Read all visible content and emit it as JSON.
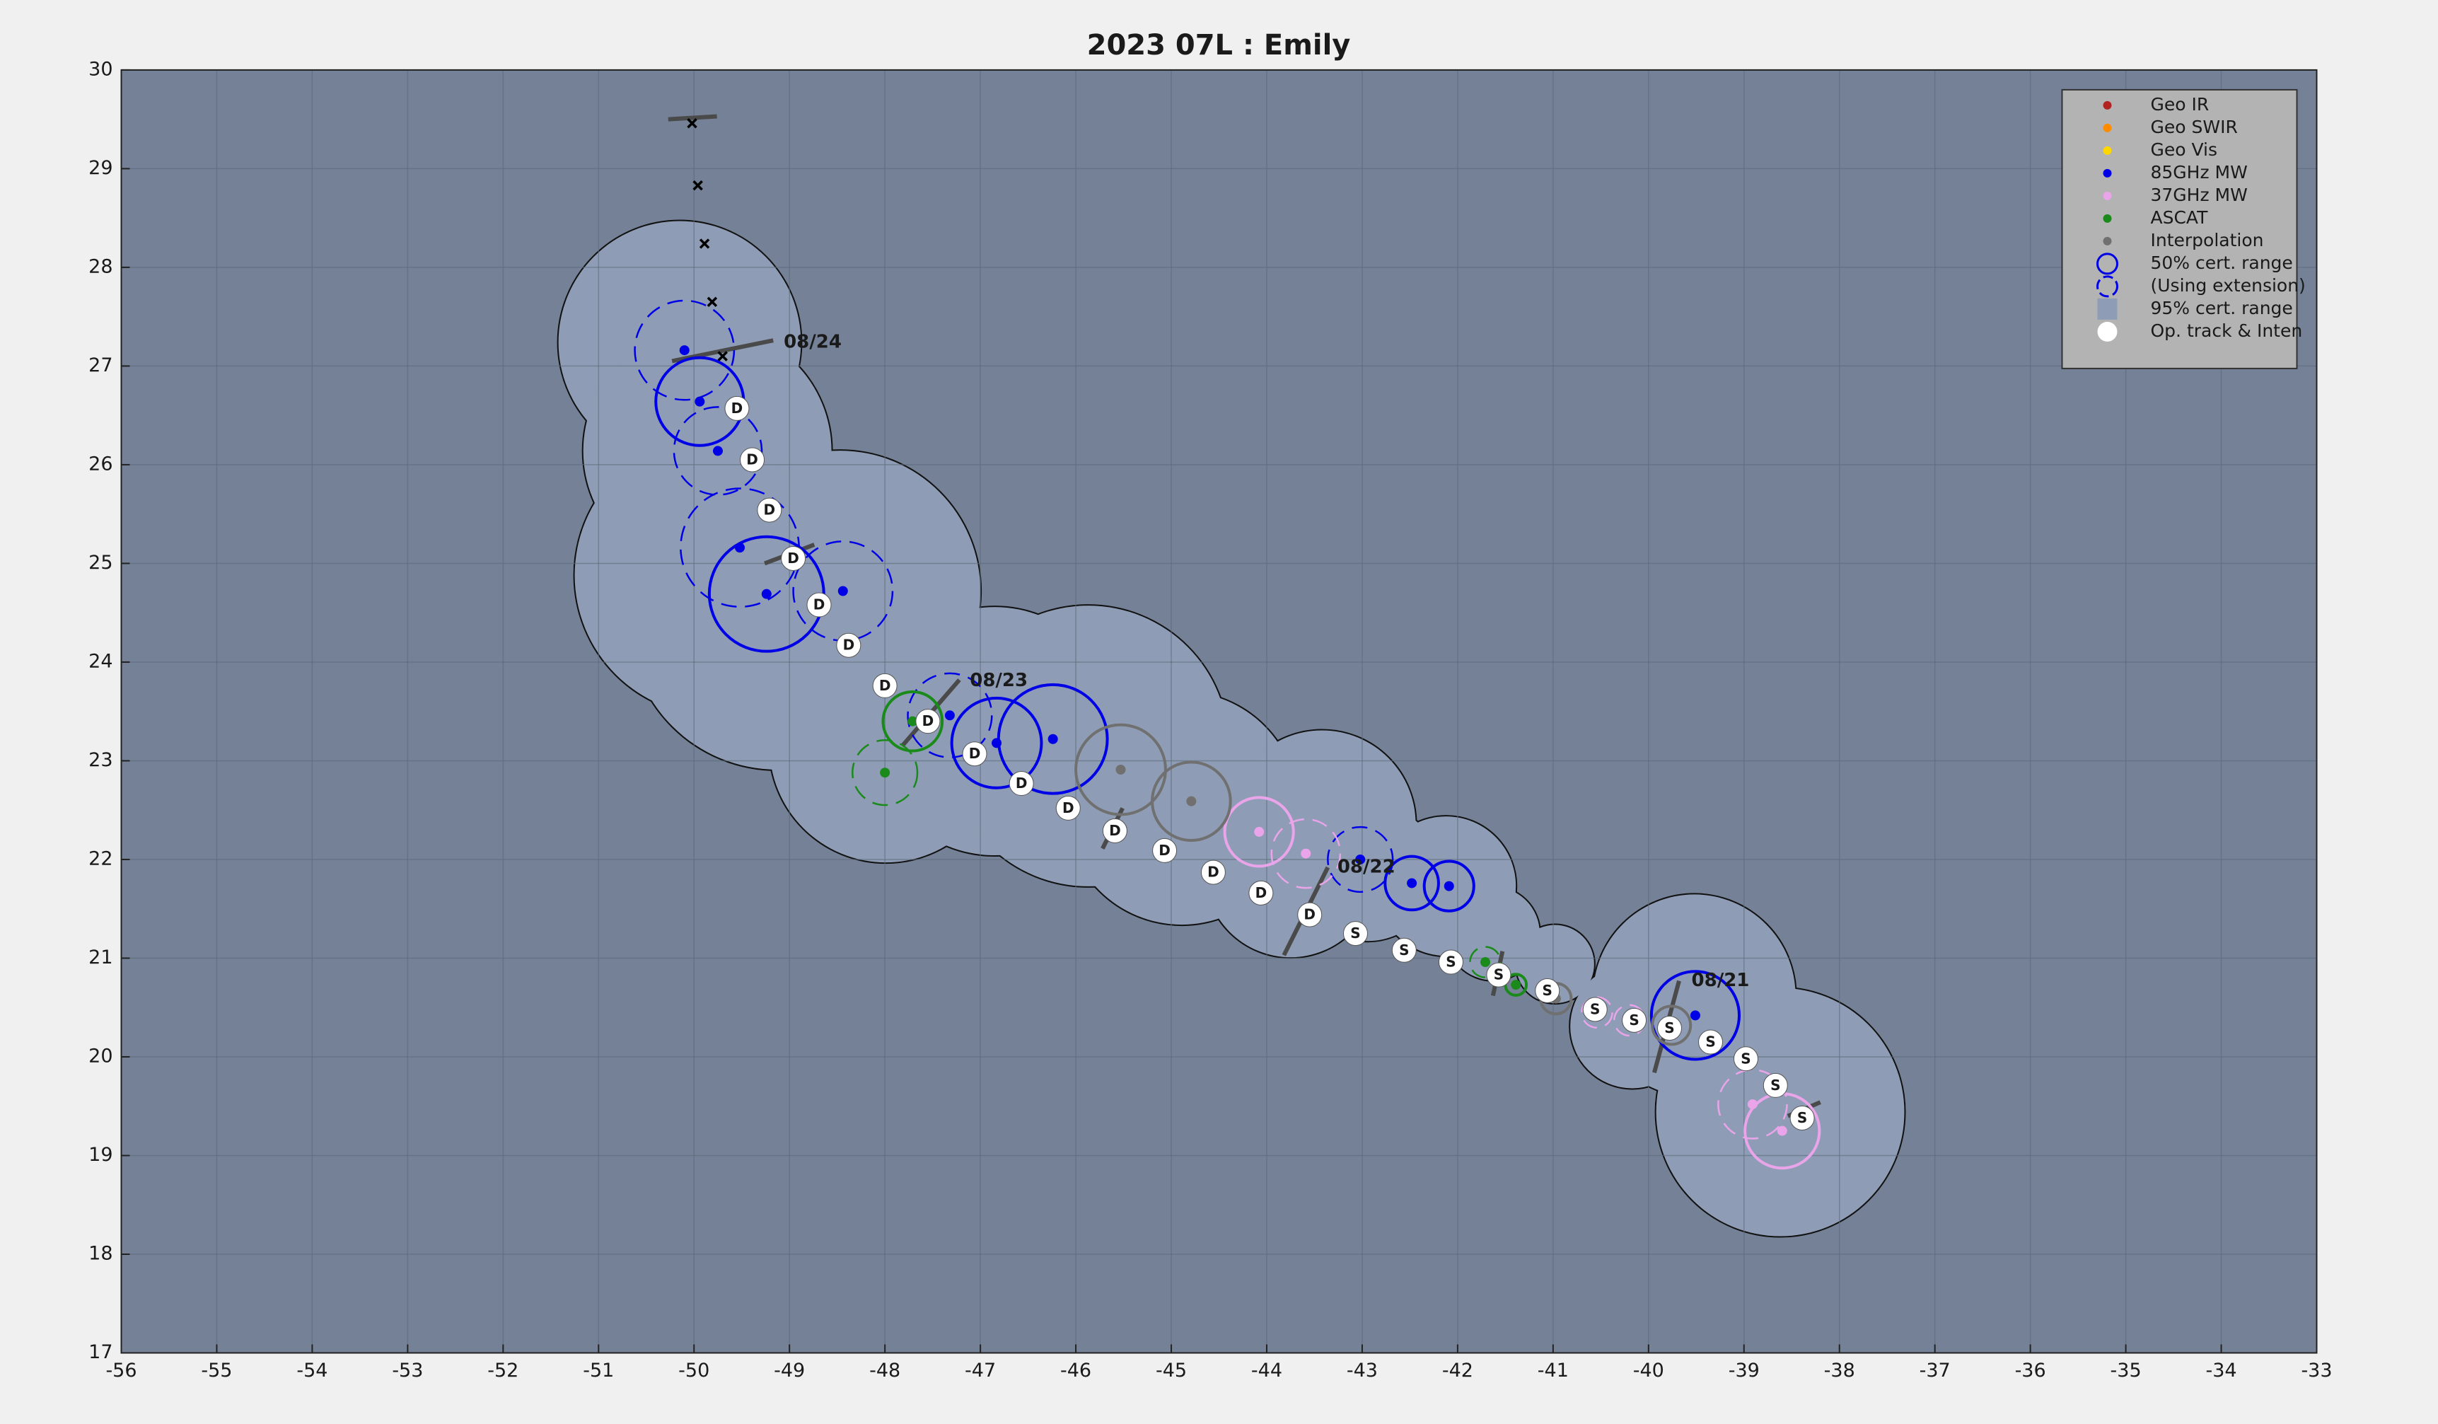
{
  "chart_data": {
    "type": "scatter",
    "title": "2023  07L :  Emily",
    "xlim": [
      -56,
      -33
    ],
    "xticks": [
      -56,
      -55,
      -54,
      -53,
      -52,
      -51,
      -50,
      -49,
      -48,
      -47,
      -46,
      -45,
      -44,
      -43,
      -42,
      -41,
      -40,
      -39,
      -38,
      -37,
      -36,
      -35,
      -34,
      -33
    ],
    "ylim": [
      17,
      30
    ],
    "yticks": [
      17,
      18,
      19,
      20,
      21,
      22,
      23,
      24,
      25,
      26,
      27,
      28,
      29,
      30
    ],
    "grid": true,
    "legend_position": "upper right",
    "series": [
      {
        "name": "Geo IR",
        "color": "#b22222",
        "x": [],
        "values": [],
        "radius": [],
        "extension": []
      },
      {
        "name": "Geo SWIR",
        "color": "#ff8c00",
        "x": [],
        "values": [],
        "radius": [],
        "extension": []
      },
      {
        "name": "Geo Vis",
        "color": "#ffd700",
        "x": [],
        "values": [],
        "radius": [],
        "extension": []
      },
      {
        "name": "85GHz MW",
        "color": "#0000e6",
        "x": [
          -49.94,
          -50.1,
          -49.75,
          -49.52,
          -49.24,
          -48.44,
          -47.32,
          -46.83,
          -46.24,
          -43.02,
          -42.48,
          -42.09,
          -39.51
        ],
        "values": [
          26.64,
          27.16,
          26.14,
          25.16,
          24.69,
          24.72,
          23.46,
          23.18,
          23.22,
          22.0,
          21.76,
          21.73,
          20.42
        ],
        "radius": [
          0.46,
          0.52,
          0.46,
          0.62,
          0.6,
          0.52,
          0.44,
          0.47,
          0.57,
          0.34,
          0.28,
          0.26,
          0.46
        ],
        "extension": [
          false,
          true,
          true,
          true,
          false,
          true,
          true,
          false,
          false,
          true,
          false,
          false,
          false
        ]
      },
      {
        "name": "37GHz MW",
        "color": "#eaa4ea",
        "x": [
          -44.08,
          -43.59,
          -40.54,
          -40.2,
          -38.91,
          -38.6
        ],
        "values": [
          22.28,
          22.06,
          20.45,
          20.37,
          19.52,
          19.25
        ],
        "radius": [
          0.36,
          0.36,
          0.16,
          0.16,
          0.36,
          0.39
        ],
        "extension": [
          false,
          true,
          true,
          true,
          true,
          false
        ]
      },
      {
        "name": "ASCAT",
        "color": "#1a8a1a",
        "x": [
          -47.71,
          -48.0,
          -41.71,
          -41.39
        ],
        "values": [
          23.4,
          22.88,
          20.96,
          20.73
        ],
        "radius": [
          0.31,
          0.34,
          0.16,
          0.11
        ],
        "extension": [
          false,
          true,
          true,
          false
        ]
      },
      {
        "name": "Interpolation",
        "color": "#707070",
        "x": [
          -45.53,
          -44.79,
          -40.97,
          -39.76
        ],
        "values": [
          22.91,
          22.59,
          20.59,
          20.32
        ],
        "radius": [
          0.47,
          0.41,
          0.16,
          0.2
        ],
        "extension": [
          false,
          false,
          false,
          false
        ]
      }
    ],
    "legend_entries": [
      "50% cert. range",
      "(Using extension)",
      "95% cert. range",
      "Op. track & Inten"
    ],
    "cert95": {
      "color": "#8e9db5",
      "x": [
        -50.15,
        -49.86,
        -49.78,
        -48.47,
        -49.13,
        -47.99,
        -46.85,
        -45.87,
        -44.89,
        -43.42,
        -43.75,
        -42.94,
        -42.12,
        -41.63,
        -40.98,
        -40.17,
        -39.52,
        -38.62
      ],
      "values": [
        27.24,
        26.14,
        24.88,
        24.72,
        24.41,
        23.15,
        23.3,
        23.15,
        22.52,
        22.36,
        21.88,
        21.88,
        21.73,
        21.25,
        20.94,
        20.31,
        20.62,
        19.44
      ],
      "radius": [
        1.27,
        1.3,
        1.47,
        1.47,
        1.55,
        1.22,
        1.3,
        1.47,
        1.22,
        0.98,
        0.9,
        0.73,
        0.73,
        0.49,
        0.41,
        0.65,
        1.06,
        1.3
      ]
    },
    "track": {
      "x": [
        -49.55,
        -49.39,
        -49.21,
        -48.96,
        -48.69,
        -48.38,
        -48.0,
        -47.55,
        -47.06,
        -46.57,
        -46.08,
        -45.59,
        -45.07,
        -44.56,
        -44.06,
        -43.55,
        -43.07,
        -42.56,
        -42.07,
        -41.57,
        -41.06,
        -40.56,
        -40.15,
        -39.78,
        -39.35,
        -38.98,
        -38.67,
        -38.39
      ],
      "values": [
        26.57,
        26.05,
        25.54,
        25.05,
        24.58,
        24.17,
        23.76,
        23.4,
        23.07,
        22.77,
        22.52,
        22.29,
        22.09,
        21.87,
        21.66,
        21.44,
        21.25,
        21.08,
        20.96,
        20.83,
        20.67,
        20.48,
        20.37,
        20.29,
        20.15,
        19.98,
        19.71,
        19.38
      ],
      "labels": [
        "D",
        "D",
        "D",
        "D",
        "D",
        "D",
        "D",
        "D",
        "D",
        "D",
        "D",
        "D",
        "D",
        "D",
        "D",
        "D",
        "S",
        "S",
        "S",
        "S",
        "S",
        "S",
        "S",
        "S",
        "S",
        "S",
        "S",
        "S"
      ]
    },
    "x_marks": {
      "x": [
        -50.02,
        -49.96,
        -49.89,
        -49.81,
        -49.7
      ],
      "values": [
        29.46,
        28.83,
        28.24,
        27.65,
        27.1
      ]
    },
    "wind_bars": {
      "x1": [
        -50.27,
        -50.23,
        -49.26,
        -47.82,
        -45.72,
        -43.82,
        -41.63,
        -39.94,
        -38.54
      ],
      "y1": [
        29.5,
        27.05,
        25.0,
        23.15,
        22.11,
        21.03,
        20.62,
        19.84,
        19.4
      ],
      "x2": [
        -49.76,
        -49.17,
        -48.74,
        -47.22,
        -45.51,
        -43.36,
        -41.53,
        -39.68,
        -38.2
      ],
      "y2": [
        29.53,
        27.26,
        25.19,
        23.82,
        22.52,
        21.92,
        21.07,
        20.77,
        19.54
      ]
    },
    "annotations": [
      {
        "text": "08/24",
        "x": -49.06,
        "y": 27.24
      },
      {
        "text": "08/23",
        "x": -47.11,
        "y": 23.81
      },
      {
        "text": "08/22",
        "x": -43.26,
        "y": 21.92
      },
      {
        "text": "08/21",
        "x": -39.55,
        "y": 20.77
      }
    ]
  }
}
